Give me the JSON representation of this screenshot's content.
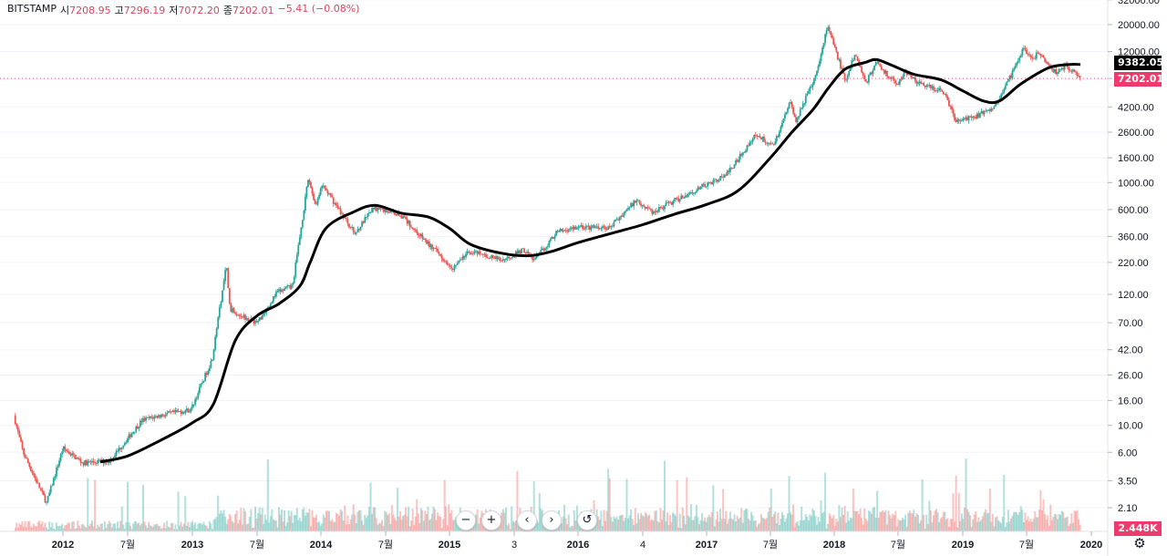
{
  "legend": {
    "symbol": "BITSTAMP",
    "open_label": "시",
    "open_value": "7208.95",
    "high_label": "고",
    "high_value": "7296.19",
    "low_label": "저",
    "low_value": "7072.20",
    "close_label": "종",
    "close_value": "7202.01",
    "change": "−5.41 (−0.08%)"
  },
  "badges": {
    "ma_value": "9382.05",
    "ma_color": "#000000",
    "last_price": "7202.01",
    "last_color": "#ec3b6c",
    "volume": "2.448K",
    "volume_color": "#ec3b6c"
  },
  "controls": {
    "zoom_out": "−",
    "zoom_in": "+",
    "scroll_left": "‹",
    "scroll_right": "›",
    "reset": "↺",
    "settings": "⚙"
  },
  "chart_data": {
    "type": "candlestick",
    "y_scale": "log",
    "colors": {
      "up": "#26a69a",
      "down": "#ef5350",
      "ma": "#000000",
      "grid": "#f0f3fa"
    },
    "y_ticks": [
      "32000.00",
      "20000.00",
      "12000.00",
      "7200.00",
      "4200.00",
      "2600.00",
      "1600.00",
      "1000.00",
      "600.00",
      "360.00",
      "220.00",
      "120.00",
      "70.00",
      "42.00",
      "26.00",
      "16.00",
      "10.00",
      "6.00",
      "3.50",
      "2.10"
    ],
    "x_ticks": [
      "2012",
      "7월",
      "2013",
      "7월",
      "2014",
      "7월",
      "2015",
      "3",
      "2016",
      "4",
      "2017",
      "7월",
      "2018",
      "7월",
      "2019",
      "7월",
      "2020"
    ],
    "price_anchors": [
      [
        "2011-08-20",
        12.0
      ],
      [
        "2011-09-15",
        6.0
      ],
      [
        "2011-11-20",
        2.3
      ],
      [
        "2012-01-05",
        6.5
      ],
      [
        "2012-03-01",
        4.9
      ],
      [
        "2012-05-15",
        5.1
      ],
      [
        "2012-08-15",
        11.0
      ],
      [
        "2012-10-01",
        12.0
      ],
      [
        "2013-01-01",
        13.5
      ],
      [
        "2013-03-01",
        35.0
      ],
      [
        "2013-04-10",
        210.0
      ],
      [
        "2013-04-20",
        90.0
      ],
      [
        "2013-07-05",
        70.0
      ],
      [
        "2013-09-01",
        125.0
      ],
      [
        "2013-10-15",
        140.0
      ],
      [
        "2013-11-30",
        1100.0
      ],
      [
        "2013-12-20",
        650.0
      ],
      [
        "2014-01-10",
        950.0
      ],
      [
        "2014-04-10",
        380.0
      ],
      [
        "2014-06-01",
        620.0
      ],
      [
        "2014-08-15",
        550.0
      ],
      [
        "2014-11-01",
        320.0
      ],
      [
        "2015-01-15",
        200.0
      ],
      [
        "2015-03-01",
        270.0
      ],
      [
        "2015-06-01",
        230.0
      ],
      [
        "2015-08-01",
        280.0
      ],
      [
        "2015-09-01",
        230.0
      ],
      [
        "2015-11-05",
        390.0
      ],
      [
        "2016-01-01",
        430.0
      ],
      [
        "2016-04-01",
        420.0
      ],
      [
        "2016-06-17",
        720.0
      ],
      [
        "2016-08-01",
        570.0
      ],
      [
        "2017-01-01",
        950.0
      ],
      [
        "2017-03-01",
        1150.0
      ],
      [
        "2017-05-25",
        2500.0
      ],
      [
        "2017-07-15",
        2000.0
      ],
      [
        "2017-09-01",
        4800.0
      ],
      [
        "2017-09-15",
        3200.0
      ],
      [
        "2017-11-10",
        7200.0
      ],
      [
        "2017-12-17",
        19500.0
      ],
      [
        "2018-02-06",
        6800.0
      ],
      [
        "2018-03-05",
        11500.0
      ],
      [
        "2018-04-06",
        6700.0
      ],
      [
        "2018-05-05",
        9800.0
      ],
      [
        "2018-07-01",
        6300.0
      ],
      [
        "2018-07-25",
        8400.0
      ],
      [
        "2018-09-01",
        6500.0
      ],
      [
        "2018-11-15",
        5600.0
      ],
      [
        "2018-12-15",
        3200.0
      ],
      [
        "2019-02-01",
        3400.0
      ],
      [
        "2019-04-01",
        4150.0
      ],
      [
        "2019-05-31",
        8500.0
      ],
      [
        "2019-06-26",
        13000.0
      ],
      [
        "2019-07-20",
        10000.0
      ],
      [
        "2019-08-05",
        11800.0
      ],
      [
        "2019-09-25",
        8100.0
      ],
      [
        "2019-10-26",
        9200.0
      ],
      [
        "2019-12-01",
        7200.0
      ]
    ],
    "moving_average": [
      [
        "2012-04-15",
        5.0
      ],
      [
        "2012-07-01",
        5.6
      ],
      [
        "2012-10-01",
        7.5
      ],
      [
        "2013-01-01",
        10.5
      ],
      [
        "2013-03-01",
        15.0
      ],
      [
        "2013-05-01",
        50.0
      ],
      [
        "2013-07-01",
        80.0
      ],
      [
        "2013-09-01",
        100.0
      ],
      [
        "2013-11-01",
        140.0
      ],
      [
        "2013-12-01",
        220.0
      ],
      [
        "2014-01-15",
        420.0
      ],
      [
        "2014-04-01",
        570.0
      ],
      [
        "2014-06-01",
        650.0
      ],
      [
        "2014-08-15",
        560.0
      ],
      [
        "2014-11-01",
        520.0
      ],
      [
        "2015-01-01",
        420.0
      ],
      [
        "2015-03-01",
        310.0
      ],
      [
        "2015-06-01",
        260.0
      ],
      [
        "2015-08-15",
        250.0
      ],
      [
        "2015-10-15",
        270.0
      ],
      [
        "2016-01-01",
        320.0
      ],
      [
        "2016-04-01",
        380.0
      ],
      [
        "2016-07-01",
        450.0
      ],
      [
        "2016-10-01",
        550.0
      ],
      [
        "2017-01-01",
        660.0
      ],
      [
        "2017-04-01",
        860.0
      ],
      [
        "2017-07-01",
        1600.0
      ],
      [
        "2017-09-01",
        2600.0
      ],
      [
        "2017-11-01",
        4000.0
      ],
      [
        "2017-12-15",
        6000.0
      ],
      [
        "2018-02-01",
        8600.0
      ],
      [
        "2018-04-01",
        9800.0
      ],
      [
        "2018-05-01",
        10300.0
      ],
      [
        "2018-06-15",
        9200.0
      ],
      [
        "2018-08-15",
        7800.0
      ],
      [
        "2018-11-01",
        7000.0
      ],
      [
        "2019-01-01",
        5700.0
      ],
      [
        "2019-03-01",
        4700.0
      ],
      [
        "2019-04-15",
        4700.0
      ],
      [
        "2019-06-15",
        6500.0
      ],
      [
        "2019-09-01",
        8800.0
      ],
      [
        "2019-11-01",
        9400.0
      ],
      [
        "2019-12-01",
        9382.05
      ]
    ],
    "last_price": 7202.01,
    "ma_last": 9382.05
  }
}
